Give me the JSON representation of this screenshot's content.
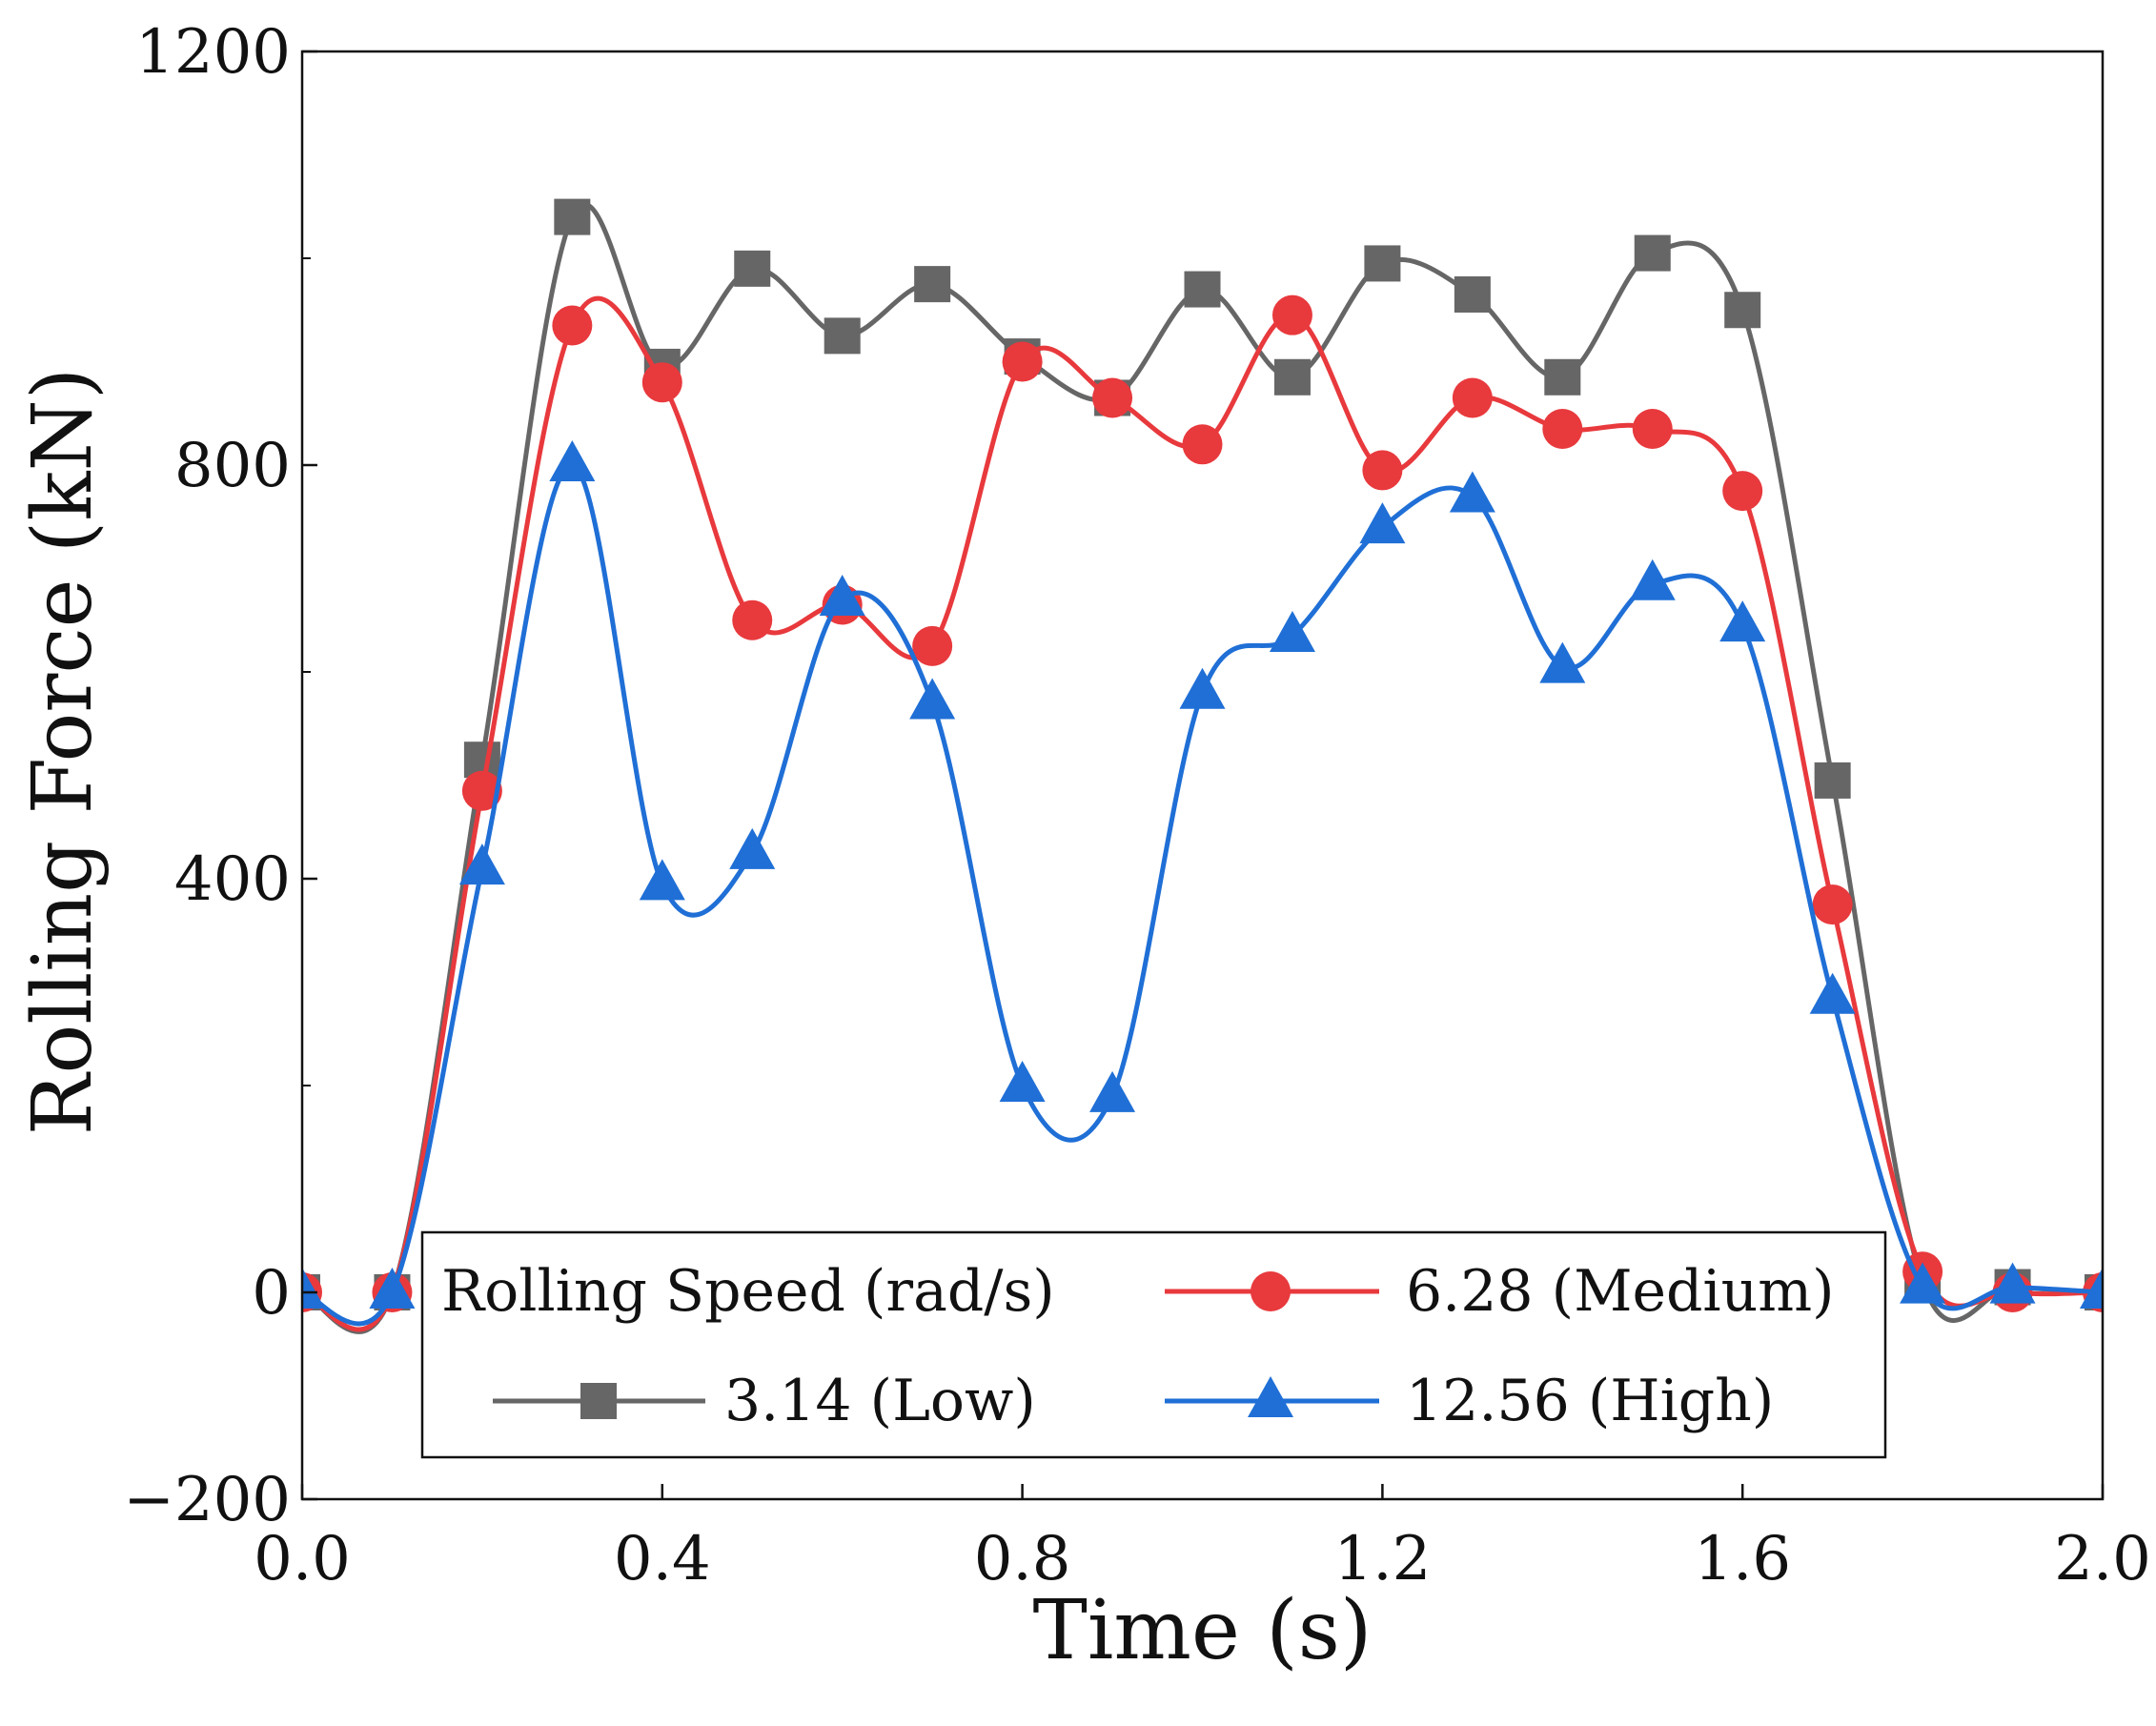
{
  "chart_data": {
    "type": "line",
    "title": "",
    "xlabel": "Time (s)",
    "ylabel": "Rolling Force (kN)",
    "xlim": [
      0.0,
      2.0
    ],
    "ylim": [
      -200,
      1200
    ],
    "xticks": [
      0.0,
      0.4,
      0.8,
      1.2,
      1.6,
      2.0
    ],
    "xtick_labels": [
      "0.0",
      "0.4",
      "0.8",
      "1.2",
      "1.6",
      "2.0"
    ],
    "yticks": [
      -200,
      0,
      400,
      800,
      1200
    ],
    "ytick_labels": [
      "−200",
      "0",
      "400",
      "800",
      "1200"
    ],
    "y_minor_ticks": [
      200,
      600,
      1000
    ],
    "grid": false,
    "legend": {
      "title": "Rolling Speed (rad/s)",
      "placement": "bottom-center"
    },
    "x": [
      0.0,
      0.1,
      0.2,
      0.3,
      0.4,
      0.5,
      0.6,
      0.7,
      0.8,
      0.9,
      1.0,
      1.1,
      1.2,
      1.3,
      1.4,
      1.5,
      1.6,
      1.7,
      1.8,
      1.9,
      2.0
    ],
    "series": [
      {
        "name": "3.14 (Low)",
        "marker": "square",
        "color": "#666666",
        "values": [
          0,
          0,
          515,
          1040,
          895,
          990,
          925,
          975,
          905,
          865,
          970,
          885,
          995,
          965,
          885,
          1005,
          950,
          495,
          10,
          5,
          0
        ]
      },
      {
        "name": "6.28 (Medium)",
        "marker": "circle",
        "color": "#e8393d",
        "values": [
          0,
          0,
          485,
          935,
          880,
          650,
          665,
          625,
          900,
          865,
          820,
          945,
          795,
          865,
          835,
          835,
          775,
          375,
          20,
          0,
          0
        ]
      },
      {
        "name": "12.56 (High)",
        "marker": "triangle",
        "color": "#1f6fd6",
        "values": [
          0,
          0,
          410,
          800,
          395,
          425,
          670,
          570,
          200,
          190,
          580,
          635,
          740,
          770,
          605,
          685,
          645,
          285,
          5,
          5,
          0
        ]
      }
    ]
  }
}
